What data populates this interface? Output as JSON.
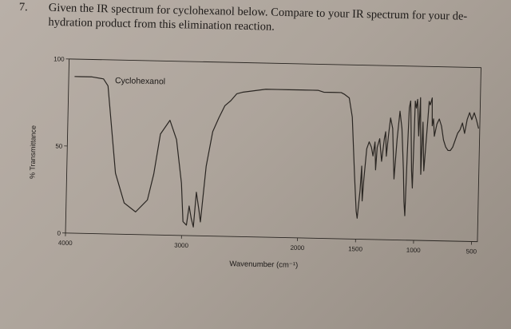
{
  "question": {
    "number": "7.",
    "line1": "Given the IR spectrum for cyclohexanol below. Compare to your IR spectrum for your de-",
    "line2": "hydration product from this elimination reaction."
  },
  "chart_data": {
    "type": "line",
    "title": "Cyclohexanol",
    "xlabel": "Wavenumber (cm⁻¹)",
    "ylabel": "% Transmittance",
    "xlim": [
      4000,
      450
    ],
    "ylim": [
      0,
      100
    ],
    "x_reversed": true,
    "x_ticks": [
      {
        "value": 4000,
        "label": "4000"
      },
      {
        "value": 3000,
        "label": "3000"
      },
      {
        "value": 2000,
        "label": "2000"
      },
      {
        "value": 1500,
        "label": "1500"
      },
      {
        "value": 1000,
        "label": "1000"
      },
      {
        "value": 500,
        "label": "500"
      }
    ],
    "y_ticks": [
      {
        "value": 100,
        "label": "100"
      },
      {
        "value": 50,
        "label": "50"
      },
      {
        "value": 0,
        "label": "0"
      }
    ],
    "grid": false,
    "color": "#2a2622",
    "series": [
      {
        "x": [
          3950,
          3900,
          3800,
          3700,
          3660,
          3620,
          3580,
          3500,
          3400,
          3300,
          3250,
          3200,
          3120,
          3060,
          3010,
          2990,
          2960,
          2940,
          2920,
          2900,
          2880,
          2855,
          2840,
          2800,
          2750,
          2700,
          2650,
          2600,
          2550,
          2500,
          2400,
          2300,
          2200,
          2100,
          2000,
          1900,
          1850,
          1800,
          1750,
          1700,
          1650,
          1620,
          1580,
          1550,
          1520,
          1500,
          1490,
          1470,
          1460,
          1450,
          1440,
          1420,
          1400,
          1380,
          1365,
          1350,
          1340,
          1330,
          1310,
          1290,
          1270,
          1260,
          1250,
          1235,
          1220,
          1200,
          1180,
          1160,
          1140,
          1120,
          1100,
          1090,
          1080,
          1070,
          1060,
          1050,
          1040,
          1030,
          1020,
          1010,
          1000,
          990,
          975,
          965,
          950,
          940,
          925,
          900,
          890,
          880,
          865,
          860,
          850,
          840,
          820,
          800,
          780,
          760,
          740,
          720,
          700,
          680,
          660,
          640,
          620,
          600,
          580,
          560,
          540,
          520,
          500,
          480,
          460
        ],
        "y": [
          90,
          90,
          90,
          89,
          85,
          60,
          35,
          18,
          13,
          20,
          35,
          58,
          66,
          55,
          30,
          8,
          6,
          17,
          10,
          5,
          25,
          15,
          8,
          40,
          60,
          68,
          75,
          78,
          82,
          83,
          84,
          85,
          85,
          85,
          85,
          85,
          85,
          84,
          84,
          84,
          84,
          83,
          81,
          70,
          36,
          16,
          12,
          28,
          42,
          22,
          34,
          52,
          56,
          53,
          48,
          56,
          40,
          53,
          58,
          45,
          58,
          62,
          48,
          60,
          70,
          64,
          35,
          58,
          74,
          64,
          40,
          22,
          14,
          50,
          76,
          80,
          62,
          40,
          30,
          80,
          76,
          81,
          60,
          82,
          38,
          68,
          40,
          68,
          80,
          78,
          82,
          66,
          70,
          60,
          67,
          70,
          66,
          58,
          54,
          52,
          52,
          54,
          58,
          62,
          64,
          68,
          62,
          70,
          74,
          70,
          74,
          70,
          65
        ]
      }
    ]
  }
}
